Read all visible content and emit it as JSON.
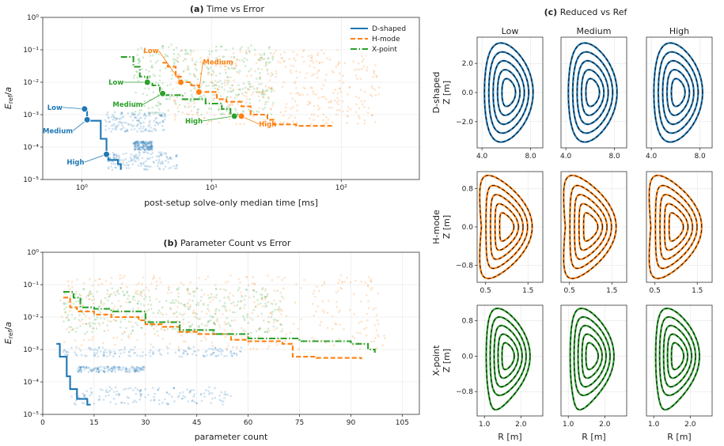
{
  "chart_data": [
    {
      "id": "a",
      "type": "scatter",
      "title_prefix": "(a)",
      "title": "Time vs Error",
      "xlabel": "post-setup solve-only median time [ms]",
      "ylabel": "E_ref/a",
      "xscale": "log",
      "yscale": "log",
      "xlim": [
        0.5,
        400
      ],
      "ylim": [
        1e-05,
        1
      ],
      "xticks": [
        {
          "v": 1,
          "label": "10⁰"
        },
        {
          "v": 10,
          "label": "10¹"
        },
        {
          "v": 100,
          "label": "10²"
        }
      ],
      "yticks": [
        {
          "v": 1e-05,
          "label": "10⁻⁵"
        },
        {
          "v": 0.0001,
          "label": "10⁻⁴"
        },
        {
          "v": 0.001,
          "label": "10⁻³"
        },
        {
          "v": 0.01,
          "label": "10⁻²"
        },
        {
          "v": 0.1,
          "label": "10⁻¹"
        },
        {
          "v": 1,
          "label": "10⁰"
        }
      ],
      "grid": true,
      "legend_position": "top-right",
      "series": [
        {
          "name": "D-shaped",
          "color": "#1f77b4",
          "dash": "solid",
          "frontier": [
            [
              1.0,
              0.0015
            ],
            [
              1.1,
              0.0007
            ],
            [
              1.1,
              0.00065
            ],
            [
              1.4,
              0.00018
            ],
            [
              1.55,
              6e-05
            ],
            [
              1.6,
              4e-05
            ],
            [
              1.9,
              3e-05
            ],
            [
              2.0,
              2e-05
            ]
          ],
          "cloud": [
            {
              "x": [
                1.5,
                4.5
              ],
              "y": [
                0.0003,
                0.0012
              ]
            },
            {
              "x": [
                1.6,
                5.5
              ],
              "y": [
                2e-05,
                7e-05
              ]
            },
            {
              "x": [
                2.5,
                3.5
              ],
              "y": [
                8e-05,
                0.00015
              ]
            }
          ]
        },
        {
          "name": "H-mode",
          "color": "#ff7f0e",
          "dash": "dashed",
          "frontier": [
            [
              4.2,
              0.04
            ],
            [
              4.6,
              0.03
            ],
            [
              5.3,
              0.015
            ],
            [
              5.8,
              0.01
            ],
            [
              7.0,
              0.008
            ],
            [
              8.0,
              0.005
            ],
            [
              11,
              0.003
            ],
            [
              13,
              0.0025
            ],
            [
              17,
              0.0018
            ],
            [
              20,
              0.001
            ],
            [
              27,
              0.0007
            ],
            [
              30,
              0.0005
            ],
            [
              45,
              0.00045
            ],
            [
              85,
              0.0004
            ]
          ],
          "cloud": [
            {
              "x": [
                5,
                200
              ],
              "y": [
                0.0005,
                0.1
              ]
            }
          ]
        },
        {
          "name": "X-point",
          "color": "#2ca02c",
          "dash": "dashdot",
          "frontier": [
            [
              2.0,
              0.06
            ],
            [
              2.5,
              0.03
            ],
            [
              2.8,
              0.015
            ],
            [
              3.2,
              0.01
            ],
            [
              3.5,
              0.008
            ],
            [
              4.0,
              0.005
            ],
            [
              4.2,
              0.004
            ],
            [
              6.0,
              0.003
            ],
            [
              9.0,
              0.0022
            ],
            [
              12,
              0.0015
            ],
            [
              14,
              0.001
            ],
            [
              16,
              0.0009
            ]
          ],
          "cloud": [
            {
              "x": [
                2.5,
                30
              ],
              "y": [
                0.001,
                0.15
              ]
            }
          ]
        }
      ],
      "markers": [
        {
          "series": "D-shaped",
          "label": "Low",
          "x": 1.05,
          "y": 0.0015
        },
        {
          "series": "D-shaped",
          "label": "Medium",
          "x": 1.1,
          "y": 0.0007
        },
        {
          "series": "D-shaped",
          "label": "High",
          "x": 1.55,
          "y": 6e-05
        },
        {
          "series": "H-mode",
          "label": "Low",
          "x": 5.8,
          "y": 0.01
        },
        {
          "series": "H-mode",
          "label": "Medium",
          "x": 8.0,
          "y": 0.005
        },
        {
          "series": "H-mode",
          "label": "High",
          "x": 17,
          "y": 0.0009
        },
        {
          "series": "X-point",
          "label": "Low",
          "x": 3.2,
          "y": 0.01
        },
        {
          "series": "X-point",
          "label": "Medium",
          "x": 4.2,
          "y": 0.0045
        },
        {
          "series": "X-point",
          "label": "High",
          "x": 15,
          "y": 0.0009
        }
      ]
    },
    {
      "id": "b",
      "type": "scatter",
      "title_prefix": "(b)",
      "title": "Parameter Count vs Error",
      "xlabel": "parameter count",
      "ylabel": "E_ref/a",
      "xscale": "linear",
      "yscale": "log",
      "xlim": [
        0,
        110
      ],
      "ylim": [
        1e-05,
        1
      ],
      "xticks": [
        {
          "v": 0,
          "label": "0"
        },
        {
          "v": 15,
          "label": "15"
        },
        {
          "v": 30,
          "label": "30"
        },
        {
          "v": 45,
          "label": "45"
        },
        {
          "v": 60,
          "label": "60"
        },
        {
          "v": 75,
          "label": "75"
        },
        {
          "v": 90,
          "label": "90"
        },
        {
          "v": 105,
          "label": "105"
        }
      ],
      "yticks": [
        {
          "v": 1e-05,
          "label": "10⁻⁵"
        },
        {
          "v": 0.0001,
          "label": "10⁻⁴"
        },
        {
          "v": 0.001,
          "label": "10⁻³"
        },
        {
          "v": 0.01,
          "label": "10⁻²"
        },
        {
          "v": 0.1,
          "label": "10⁻¹"
        },
        {
          "v": 1,
          "label": "10⁰"
        }
      ],
      "grid": true,
      "series": [
        {
          "name": "D-shaped",
          "color": "#1f77b4",
          "dash": "solid",
          "frontier": [
            [
              4,
              0.0015
            ],
            [
              5,
              0.0006
            ],
            [
              6,
              0.0006
            ],
            [
              7,
              0.00015
            ],
            [
              8,
              6e-05
            ],
            [
              10,
              3e-05
            ],
            [
              12,
              3e-05
            ],
            [
              13,
              2e-05
            ],
            [
              14,
              2e-05
            ]
          ],
          "cloud": [
            {
              "x": [
                6,
                58
              ],
              "y": [
                0.0006,
                0.0012
              ]
            },
            {
              "x": [
                8,
                55
              ],
              "y": [
                2e-05,
                7e-05
              ]
            },
            {
              "x": [
                10,
                30
              ],
              "y": [
                0.0002,
                0.0003
              ]
            }
          ]
        },
        {
          "name": "H-mode",
          "color": "#ff7f0e",
          "dash": "dashed",
          "frontier": [
            [
              6,
              0.04
            ],
            [
              8,
              0.02
            ],
            [
              10,
              0.015
            ],
            [
              15,
              0.012
            ],
            [
              20,
              0.01
            ],
            [
              28,
              0.008
            ],
            [
              30,
              0.006
            ],
            [
              35,
              0.005
            ],
            [
              40,
              0.0035
            ],
            [
              45,
              0.003
            ],
            [
              55,
              0.002
            ],
            [
              60,
              0.0018
            ],
            [
              70,
              0.0015
            ],
            [
              73,
              0.0006
            ],
            [
              80,
              0.00055
            ],
            [
              93,
              0.0005
            ]
          ],
          "cloud": [
            {
              "x": [
                5,
                100
              ],
              "y": [
                0.001,
                0.2
              ]
            }
          ]
        },
        {
          "name": "X-point",
          "color": "#2ca02c",
          "dash": "dashdot",
          "frontier": [
            [
              6,
              0.06
            ],
            [
              9,
              0.04
            ],
            [
              11,
              0.02
            ],
            [
              15,
              0.018
            ],
            [
              20,
              0.015
            ],
            [
              30,
              0.007
            ],
            [
              40,
              0.004
            ],
            [
              50,
              0.003
            ],
            [
              60,
              0.0022
            ],
            [
              75,
              0.0018
            ],
            [
              90,
              0.0015
            ],
            [
              95,
              0.001
            ],
            [
              97,
              0.0008
            ]
          ],
          "cloud": [
            {
              "x": [
                6,
                70
              ],
              "y": [
                0.003,
                0.08
              ]
            }
          ]
        }
      ]
    },
    {
      "id": "c",
      "type": "line",
      "title_prefix": "(c)",
      "title": "Reduced vs Ref",
      "columns": [
        "Low",
        "Medium",
        "High"
      ],
      "xlabel": "R [m]",
      "ref_style": "black dashed",
      "rows": [
        {
          "name": "D-shaped",
          "ylabel": "Z [m]",
          "color": "#1f77b4",
          "shape": "d",
          "xlim": [
            3.6,
            9.0
          ],
          "ylim": [
            -3.8,
            3.8
          ],
          "xticks": [
            {
              "v": 4.0,
              "label": "4.0"
            },
            {
              "v": 8.0,
              "label": "8.0"
            }
          ],
          "yticks": [
            {
              "v": -2.0,
              "label": "−2.0"
            },
            {
              "v": 0.0,
              "label": "0.0"
            },
            {
              "v": 2.0,
              "label": "2.0"
            }
          ],
          "R0": 6.2,
          "a": 2.0,
          "kappa": 1.7,
          "delta": 0.33
        },
        {
          "name": "H-mode",
          "ylabel": "Z [m]",
          "color": "#ff7f0e",
          "shape": "h",
          "xlim": [
            0.3,
            1.85
          ],
          "ylim": [
            -1.15,
            1.15
          ],
          "xticks": [
            {
              "v": 0.5,
              "label": "0.5"
            },
            {
              "v": 1.5,
              "label": "1.5"
            }
          ],
          "yticks": [
            {
              "v": -0.8,
              "label": "−0.8"
            },
            {
              "v": 0.0,
              "label": "0.0"
            },
            {
              "v": 0.8,
              "label": "0.8"
            }
          ],
          "R0": 1.0,
          "a": 0.6,
          "kappa": 1.75,
          "delta": 0.7
        },
        {
          "name": "X-point",
          "ylabel": "Z [m]",
          "color": "#2ca02c",
          "shape": "x",
          "xlim": [
            0.8,
            2.6
          ],
          "ylim": [
            -1.35,
            1.15
          ],
          "xticks": [
            {
              "v": 1.0,
              "label": "1.0"
            },
            {
              "v": 2.0,
              "label": "2.0"
            }
          ],
          "yticks": [
            {
              "v": -0.8,
              "label": "−0.8"
            },
            {
              "v": 0.0,
              "label": "0.0"
            },
            {
              "v": 0.8,
              "label": "0.8"
            }
          ],
          "R0": 1.65,
          "a": 0.6,
          "kappa": 1.8,
          "delta": 0.5
        }
      ]
    }
  ]
}
